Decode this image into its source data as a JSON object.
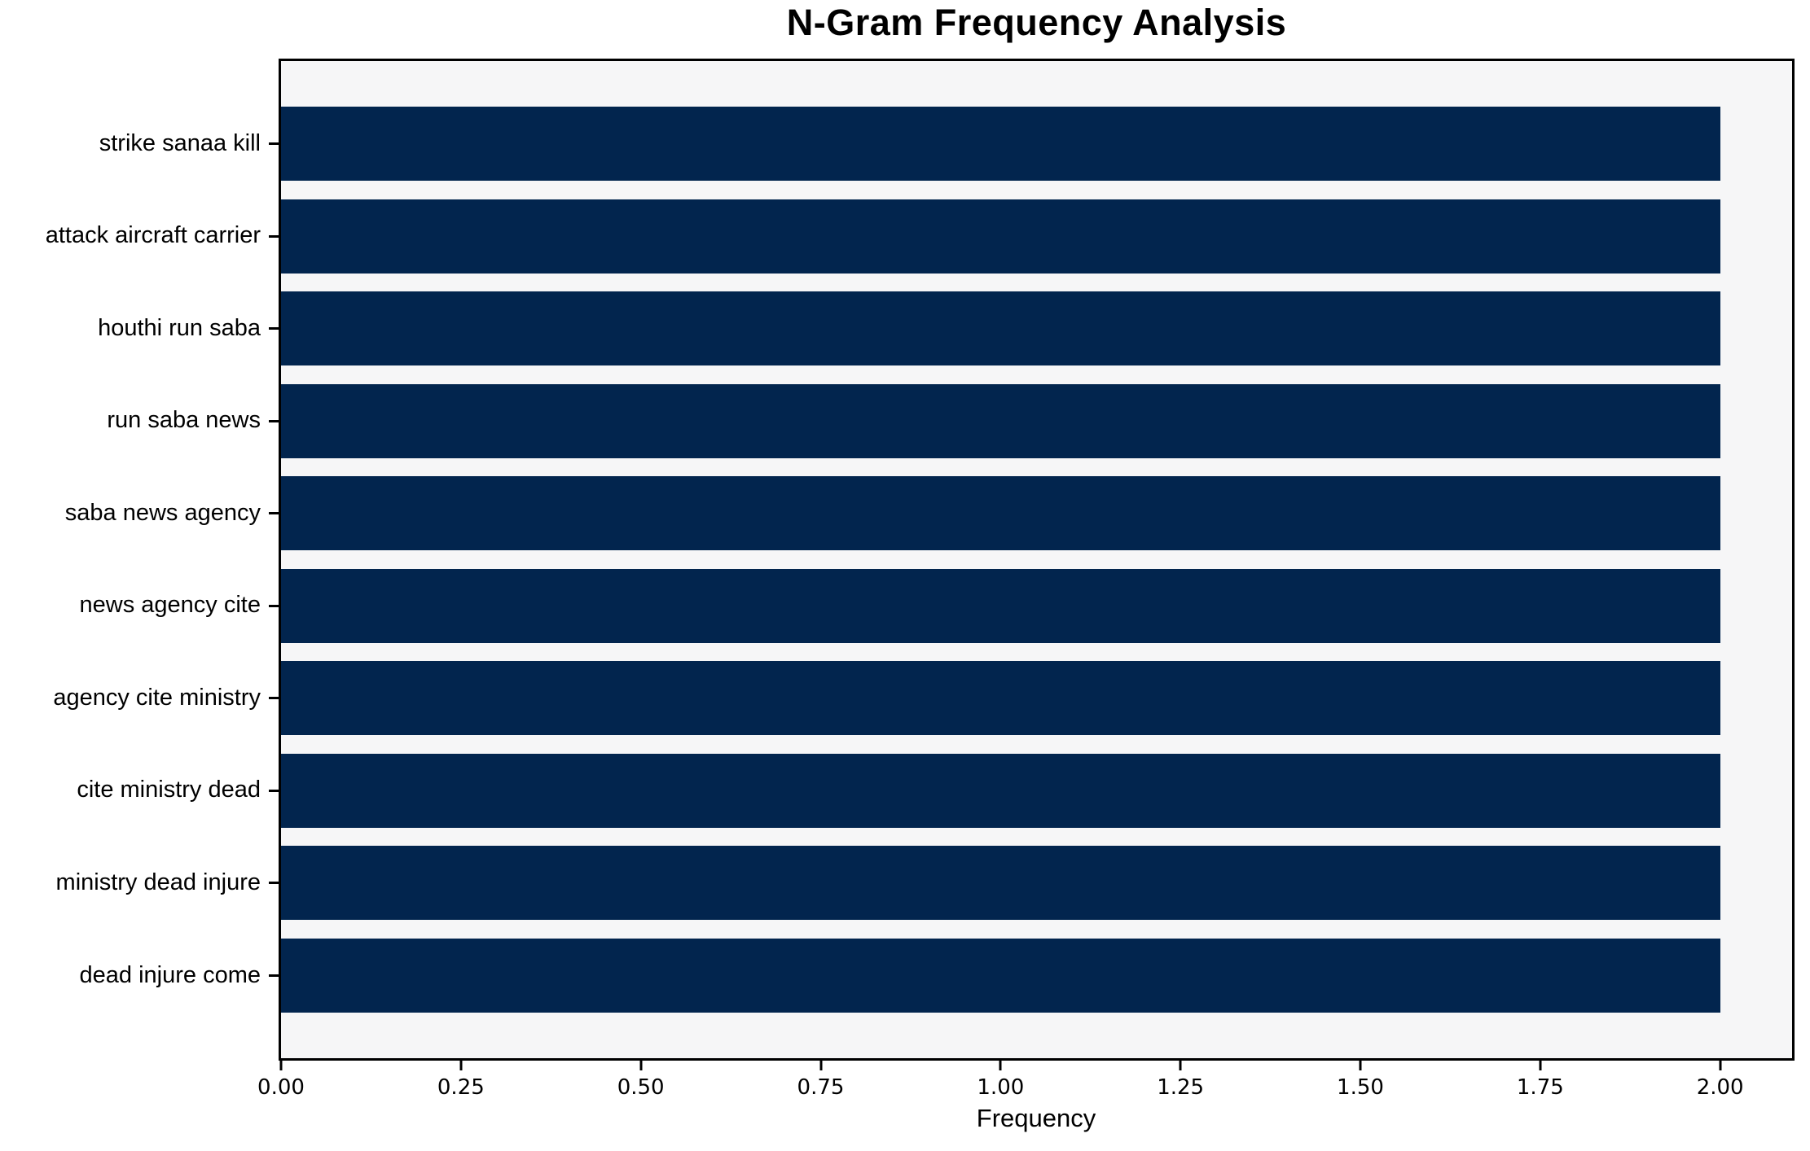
{
  "title": "N-Gram Frequency Analysis",
  "x_axis": {
    "label": "Frequency",
    "tick_labels": [
      "0.00",
      "0.25",
      "0.50",
      "0.75",
      "1.00",
      "1.25",
      "1.50",
      "1.75",
      "2.00"
    ]
  },
  "colors": {
    "bar": "#02254e",
    "plot_background": "#f6f6f7",
    "figure_background": "#ffffff",
    "spine": "#000000",
    "text": "#000000"
  },
  "chart_data": {
    "type": "bar",
    "orientation": "horizontal",
    "title": "N-Gram Frequency Analysis",
    "xlabel": "Frequency",
    "ylabel": "",
    "categories": [
      "strike sanaa kill",
      "attack aircraft carrier",
      "houthi run saba",
      "run saba news",
      "saba news agency",
      "news agency cite",
      "agency cite ministry",
      "cite ministry dead",
      "ministry dead injure",
      "dead injure come"
    ],
    "values": [
      2,
      2,
      2,
      2,
      2,
      2,
      2,
      2,
      2,
      2
    ],
    "xlim": [
      0,
      2.1
    ],
    "x_tick_values": [
      0,
      0.25,
      0.5,
      0.75,
      1.0,
      1.25,
      1.5,
      1.75,
      2.0
    ],
    "grid": false,
    "legend_position": "none",
    "bar_color": "#02254e"
  }
}
